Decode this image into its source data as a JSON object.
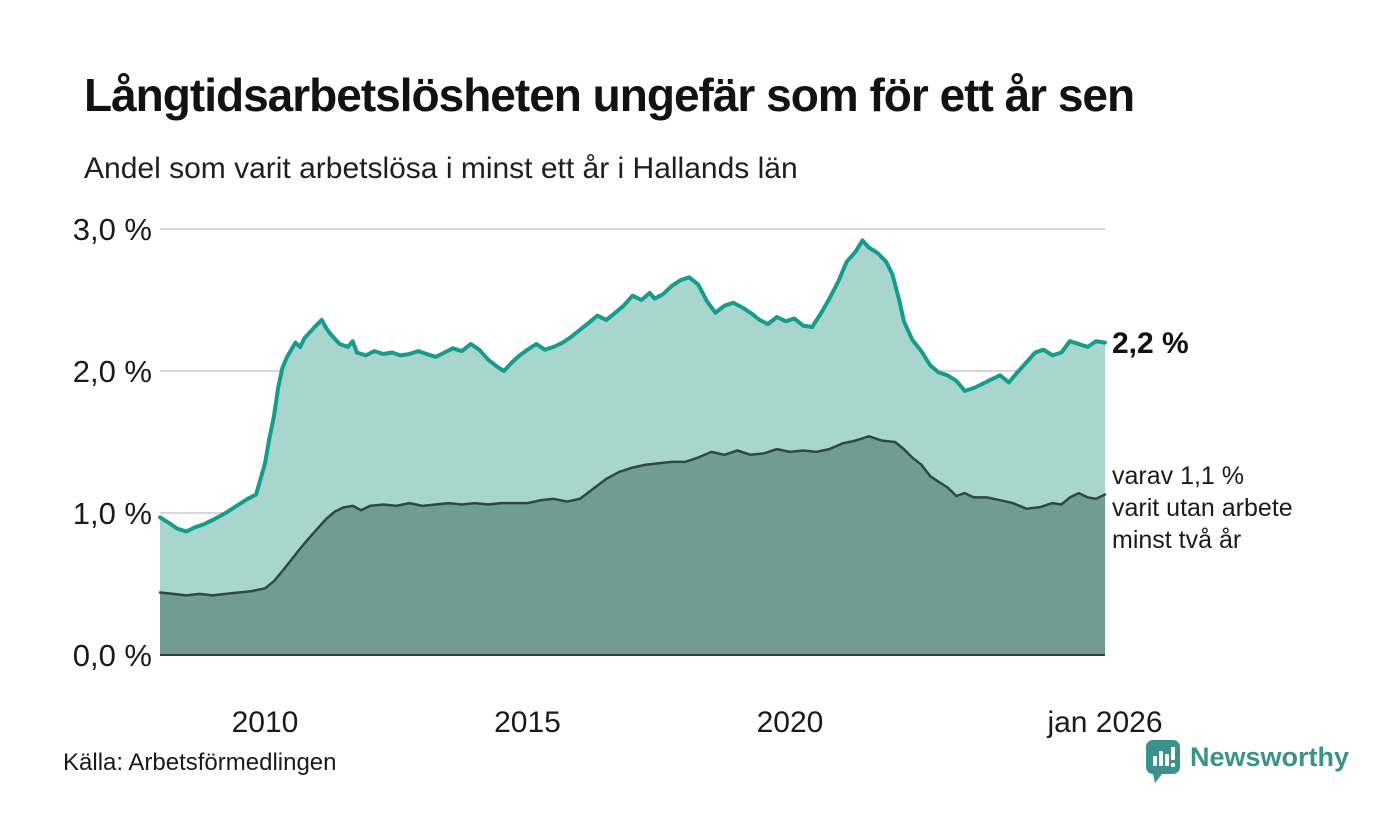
{
  "title": "Långtidsarbetslösheten ungefär som för ett år sen",
  "subtitle": "Andel som varit arbetslösa i minst ett år i Hallands län",
  "source": "Källa: Arbetsförmedlingen",
  "logo": {
    "name": "Newsworthy"
  },
  "annotations": {
    "total_value": "2,2 %",
    "note_lines": [
      "varav 1,1 %",
      "varit utan arbete",
      "minst två år"
    ]
  },
  "colors": {
    "line_total": "#169b8d",
    "fill_total": "#a8d5ce",
    "line_two_years": "#2c4a45",
    "fill_two_years": "#709c95",
    "gridline": "#d8d8d8",
    "axis": "#3b3b3b",
    "logo_teal": "#3a938a"
  },
  "chart_data": {
    "type": "area",
    "title": "Långtidsarbetslösheten ungefär som för ett år sen",
    "subtitle": "Andel som varit arbetslösa i minst ett år i Hallands län",
    "xlabel": "",
    "ylabel": "",
    "xlim": [
      2008,
      2026
    ],
    "ylim": [
      0,
      3
    ],
    "grid": true,
    "legend": "annotations-right",
    "yticks": [
      {
        "value": 0,
        "label": "0,0 %"
      },
      {
        "value": 1,
        "label": "1,0 %"
      },
      {
        "value": 2,
        "label": "2,0 %"
      },
      {
        "value": 3,
        "label": "3,0 %"
      }
    ],
    "xticks": [
      {
        "value": 2010,
        "label": "2010"
      },
      {
        "value": 2015,
        "label": "2015"
      },
      {
        "value": 2020,
        "label": "2020"
      },
      {
        "value": 2026,
        "label": "jan 2026"
      }
    ],
    "series": [
      {
        "name": "Andel arbetslösa minst ett år",
        "end_label": "2,2 %",
        "points": [
          [
            2008.0,
            0.97
          ],
          [
            2008.17,
            0.93
          ],
          [
            2008.33,
            0.89
          ],
          [
            2008.5,
            0.87
          ],
          [
            2008.67,
            0.9
          ],
          [
            2008.83,
            0.92
          ],
          [
            2009.0,
            0.95
          ],
          [
            2009.25,
            1.0
          ],
          [
            2009.5,
            1.06
          ],
          [
            2009.67,
            1.1
          ],
          [
            2009.83,
            1.13
          ],
          [
            2010.0,
            1.35
          ],
          [
            2010.08,
            1.52
          ],
          [
            2010.17,
            1.68
          ],
          [
            2010.25,
            1.88
          ],
          [
            2010.33,
            2.02
          ],
          [
            2010.42,
            2.1
          ],
          [
            2010.5,
            2.15
          ],
          [
            2010.58,
            2.2
          ],
          [
            2010.67,
            2.17
          ],
          [
            2010.75,
            2.23
          ],
          [
            2010.92,
            2.3
          ],
          [
            2011.08,
            2.36
          ],
          [
            2011.17,
            2.3
          ],
          [
            2011.25,
            2.26
          ],
          [
            2011.42,
            2.19
          ],
          [
            2011.58,
            2.17
          ],
          [
            2011.67,
            2.21
          ],
          [
            2011.75,
            2.13
          ],
          [
            2011.92,
            2.11
          ],
          [
            2012.08,
            2.14
          ],
          [
            2012.25,
            2.12
          ],
          [
            2012.42,
            2.13
          ],
          [
            2012.58,
            2.11
          ],
          [
            2012.75,
            2.12
          ],
          [
            2012.92,
            2.14
          ],
          [
            2013.08,
            2.12
          ],
          [
            2013.25,
            2.1
          ],
          [
            2013.42,
            2.13
          ],
          [
            2013.58,
            2.16
          ],
          [
            2013.75,
            2.14
          ],
          [
            2013.92,
            2.19
          ],
          [
            2014.08,
            2.15
          ],
          [
            2014.25,
            2.08
          ],
          [
            2014.42,
            2.03
          ],
          [
            2014.55,
            2.0
          ],
          [
            2014.7,
            2.06
          ],
          [
            2014.85,
            2.11
          ],
          [
            2015.0,
            2.15
          ],
          [
            2015.17,
            2.19
          ],
          [
            2015.33,
            2.15
          ],
          [
            2015.5,
            2.17
          ],
          [
            2015.67,
            2.2
          ],
          [
            2015.83,
            2.24
          ],
          [
            2016.0,
            2.29
          ],
          [
            2016.17,
            2.34
          ],
          [
            2016.33,
            2.39
          ],
          [
            2016.5,
            2.36
          ],
          [
            2016.67,
            2.41
          ],
          [
            2016.83,
            2.46
          ],
          [
            2017.0,
            2.53
          ],
          [
            2017.17,
            2.5
          ],
          [
            2017.33,
            2.55
          ],
          [
            2017.42,
            2.51
          ],
          [
            2017.58,
            2.54
          ],
          [
            2017.75,
            2.6
          ],
          [
            2017.92,
            2.64
          ],
          [
            2018.08,
            2.66
          ],
          [
            2018.25,
            2.61
          ],
          [
            2018.42,
            2.49
          ],
          [
            2018.58,
            2.41
          ],
          [
            2018.75,
            2.46
          ],
          [
            2018.92,
            2.48
          ],
          [
            2019.08,
            2.45
          ],
          [
            2019.25,
            2.41
          ],
          [
            2019.42,
            2.36
          ],
          [
            2019.58,
            2.33
          ],
          [
            2019.75,
            2.38
          ],
          [
            2019.92,
            2.35
          ],
          [
            2020.08,
            2.37
          ],
          [
            2020.25,
            2.32
          ],
          [
            2020.42,
            2.31
          ],
          [
            2020.58,
            2.4
          ],
          [
            2020.75,
            2.51
          ],
          [
            2020.92,
            2.63
          ],
          [
            2021.08,
            2.77
          ],
          [
            2021.25,
            2.84
          ],
          [
            2021.38,
            2.92
          ],
          [
            2021.5,
            2.87
          ],
          [
            2021.67,
            2.83
          ],
          [
            2021.83,
            2.77
          ],
          [
            2021.95,
            2.68
          ],
          [
            2022.08,
            2.5
          ],
          [
            2022.17,
            2.35
          ],
          [
            2022.33,
            2.22
          ],
          [
            2022.5,
            2.14
          ],
          [
            2022.67,
            2.04
          ],
          [
            2022.83,
            1.99
          ],
          [
            2023.0,
            1.97
          ],
          [
            2023.17,
            1.93
          ],
          [
            2023.33,
            1.86
          ],
          [
            2023.5,
            1.88
          ],
          [
            2023.67,
            1.91
          ],
          [
            2023.83,
            1.94
          ],
          [
            2024.0,
            1.97
          ],
          [
            2024.17,
            1.92
          ],
          [
            2024.33,
            1.99
          ],
          [
            2024.5,
            2.06
          ],
          [
            2024.67,
            2.13
          ],
          [
            2024.83,
            2.15
          ],
          [
            2025.0,
            2.11
          ],
          [
            2025.17,
            2.13
          ],
          [
            2025.33,
            2.21
          ],
          [
            2025.5,
            2.19
          ],
          [
            2025.67,
            2.17
          ],
          [
            2025.83,
            2.21
          ],
          [
            2026.0,
            2.2
          ]
        ]
      },
      {
        "name": "varav utan arbete minst två år",
        "end_label": "varav 1,1 % varit utan arbete minst två år",
        "points": [
          [
            2008.0,
            0.44
          ],
          [
            2008.25,
            0.43
          ],
          [
            2008.5,
            0.42
          ],
          [
            2008.75,
            0.43
          ],
          [
            2009.0,
            0.42
          ],
          [
            2009.25,
            0.43
          ],
          [
            2009.5,
            0.44
          ],
          [
            2009.75,
            0.45
          ],
          [
            2010.0,
            0.47
          ],
          [
            2010.17,
            0.52
          ],
          [
            2010.33,
            0.59
          ],
          [
            2010.5,
            0.67
          ],
          [
            2010.67,
            0.75
          ],
          [
            2010.83,
            0.82
          ],
          [
            2011.0,
            0.89
          ],
          [
            2011.17,
            0.96
          ],
          [
            2011.33,
            1.01
          ],
          [
            2011.5,
            1.04
          ],
          [
            2011.67,
            1.05
          ],
          [
            2011.83,
            1.02
          ],
          [
            2012.0,
            1.05
          ],
          [
            2012.25,
            1.06
          ],
          [
            2012.5,
            1.05
          ],
          [
            2012.75,
            1.07
          ],
          [
            2013.0,
            1.05
          ],
          [
            2013.25,
            1.06
          ],
          [
            2013.5,
            1.07
          ],
          [
            2013.75,
            1.06
          ],
          [
            2014.0,
            1.07
          ],
          [
            2014.25,
            1.06
          ],
          [
            2014.5,
            1.07
          ],
          [
            2014.75,
            1.07
          ],
          [
            2015.0,
            1.07
          ],
          [
            2015.25,
            1.09
          ],
          [
            2015.5,
            1.1
          ],
          [
            2015.75,
            1.08
          ],
          [
            2016.0,
            1.1
          ],
          [
            2016.25,
            1.17
          ],
          [
            2016.5,
            1.24
          ],
          [
            2016.75,
            1.29
          ],
          [
            2017.0,
            1.32
          ],
          [
            2017.25,
            1.34
          ],
          [
            2017.5,
            1.35
          ],
          [
            2017.75,
            1.36
          ],
          [
            2018.0,
            1.36
          ],
          [
            2018.25,
            1.39
          ],
          [
            2018.5,
            1.43
          ],
          [
            2018.75,
            1.41
          ],
          [
            2019.0,
            1.44
          ],
          [
            2019.25,
            1.41
          ],
          [
            2019.5,
            1.42
          ],
          [
            2019.75,
            1.45
          ],
          [
            2020.0,
            1.43
          ],
          [
            2020.25,
            1.44
          ],
          [
            2020.5,
            1.43
          ],
          [
            2020.75,
            1.45
          ],
          [
            2021.0,
            1.49
          ],
          [
            2021.25,
            1.51
          ],
          [
            2021.5,
            1.54
          ],
          [
            2021.75,
            1.51
          ],
          [
            2022.0,
            1.5
          ],
          [
            2022.17,
            1.45
          ],
          [
            2022.33,
            1.39
          ],
          [
            2022.5,
            1.34
          ],
          [
            2022.67,
            1.26
          ],
          [
            2022.83,
            1.22
          ],
          [
            2023.0,
            1.18
          ],
          [
            2023.17,
            1.12
          ],
          [
            2023.33,
            1.14
          ],
          [
            2023.5,
            1.11
          ],
          [
            2023.75,
            1.11
          ],
          [
            2024.0,
            1.09
          ],
          [
            2024.25,
            1.07
          ],
          [
            2024.5,
            1.03
          ],
          [
            2024.75,
            1.04
          ],
          [
            2025.0,
            1.07
          ],
          [
            2025.17,
            1.06
          ],
          [
            2025.33,
            1.11
          ],
          [
            2025.5,
            1.14
          ],
          [
            2025.67,
            1.11
          ],
          [
            2025.83,
            1.1
          ],
          [
            2026.0,
            1.13
          ]
        ]
      }
    ]
  }
}
